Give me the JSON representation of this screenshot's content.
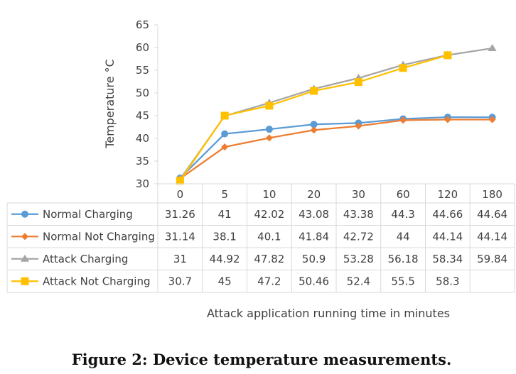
{
  "chart_data": {
    "type": "line",
    "categories": [
      "0",
      "5",
      "10",
      "20",
      "30",
      "60",
      "120",
      "180"
    ],
    "ylabel": "Temperature °C",
    "xlabel": "Attack application  running time in minutes",
    "ylim": [
      30,
      65
    ],
    "yticks": [
      30,
      35,
      40,
      45,
      50,
      55,
      60,
      65
    ],
    "series": [
      {
        "name": "Normal Charging",
        "color": "#5B9BD5",
        "marker": "circle",
        "values": [
          31.26,
          41,
          42.02,
          43.08,
          43.38,
          44.3,
          44.66,
          44.64
        ],
        "labels": [
          "31.26",
          "41",
          "42.02",
          "43.08",
          "43.38",
          "44.3",
          "44.66",
          "44.64"
        ]
      },
      {
        "name": "Normal Not Charging",
        "color": "#ED7D31",
        "marker": "diamond",
        "values": [
          31.14,
          38.1,
          40.1,
          41.84,
          42.72,
          44,
          44.14,
          44.14
        ],
        "labels": [
          "31.14",
          "38.1",
          "40.1",
          "41.84",
          "42.72",
          "44",
          "44.14",
          "44.14"
        ]
      },
      {
        "name": "Attack Charging",
        "color": "#A5A5A5",
        "marker": "triangle",
        "values": [
          31,
          44.92,
          47.82,
          50.9,
          53.28,
          56.18,
          58.34,
          59.84
        ],
        "labels": [
          "31",
          "44.92",
          "47.82",
          "50.9",
          "53.28",
          "56.18",
          "58.34",
          "59.84"
        ]
      },
      {
        "name": "Attack Not Charging",
        "color": "#FFC000",
        "marker": "square",
        "values": [
          30.7,
          45,
          47.2,
          50.46,
          52.4,
          55.5,
          58.3,
          null
        ],
        "labels": [
          "30.7",
          "45",
          "47.2",
          "50.46",
          "52.4",
          "55.5",
          "58.3",
          ""
        ]
      }
    ],
    "grid": false,
    "legend": "data-table"
  },
  "caption": "Figure 2: Device temperature measurements."
}
